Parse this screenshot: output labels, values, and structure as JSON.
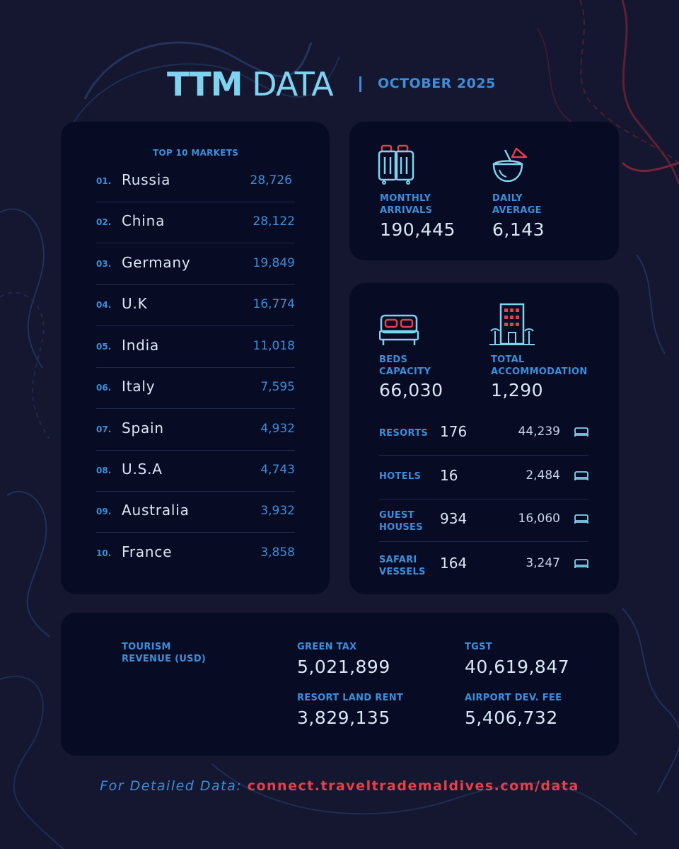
{
  "header": {
    "title_bold": "TTM",
    "title_light": "DATA",
    "period": "OCTOBER 2025"
  },
  "markets": {
    "title": "TOP 10 MARKETS",
    "rows": [
      {
        "rank": "01.",
        "country": "Russia",
        "value": "28,726"
      },
      {
        "rank": "02.",
        "country": "China",
        "value": "28,122"
      },
      {
        "rank": "03.",
        "country": "Germany",
        "value": "19,849"
      },
      {
        "rank": "04.",
        "country": "U.K",
        "value": "16,774"
      },
      {
        "rank": "05.",
        "country": "India",
        "value": "11,018"
      },
      {
        "rank": "06.",
        "country": "Italy",
        "value": "7,595"
      },
      {
        "rank": "07.",
        "country": "Spain",
        "value": "4,932"
      },
      {
        "rank": "08.",
        "country": "U.S.A",
        "value": "4,743"
      },
      {
        "rank": "09.",
        "country": "Australia",
        "value": "3,932"
      },
      {
        "rank": "10.",
        "country": "France",
        "value": "3,858"
      }
    ]
  },
  "arrivals": {
    "monthly_label_1": "MONTHLY",
    "monthly_label_2": "ARRIVALS",
    "monthly_value": "190,445",
    "monthly_icon": "luggage-icon",
    "daily_label_1": "DAILY",
    "daily_label_2": "AVERAGE",
    "daily_value": "6,143",
    "daily_icon": "coconut-drink-icon"
  },
  "accommodation": {
    "beds_label_1": "BEDS",
    "beds_label_2": "CAPACITY",
    "beds_value": "66,030",
    "beds_icon": "bed-icon",
    "total_label_1": "TOTAL",
    "total_label_2": "ACCOMMODATION",
    "total_value": "1,290",
    "total_icon": "hotel-building-icon",
    "rows": [
      {
        "category_1": "RESORTS",
        "category_2": "",
        "count": "176",
        "beds": "44,239"
      },
      {
        "category_1": "HOTELS",
        "category_2": "",
        "count": "16",
        "beds": "2,484"
      },
      {
        "category_1": "GUEST",
        "category_2": "HOUSES",
        "count": "934",
        "beds": "16,060"
      },
      {
        "category_1": "SAFARI",
        "category_2": "VESSELS",
        "count": "164",
        "beds": "3,247"
      }
    ]
  },
  "revenue": {
    "title_1": "TOURISM",
    "title_2": "REVENUE (USD)",
    "items": [
      {
        "label": "GREEN TAX",
        "value": "5,021,899"
      },
      {
        "label": "TGST",
        "value": "40,619,847"
      },
      {
        "label": "RESORT LAND RENT",
        "value": "3,829,135"
      },
      {
        "label": "AIRPORT DEV. FEE",
        "value": "5,406,732"
      }
    ]
  },
  "footer": {
    "prefix": "For Detailed Data:",
    "link": "connect.traveltrademaldives.com/data"
  },
  "colors": {
    "background": "#15162f",
    "card": "#080b24",
    "accent_blue": "#3d8ed9",
    "title_cyan": "#7fd3ef",
    "accent_red": "#e0414c"
  }
}
